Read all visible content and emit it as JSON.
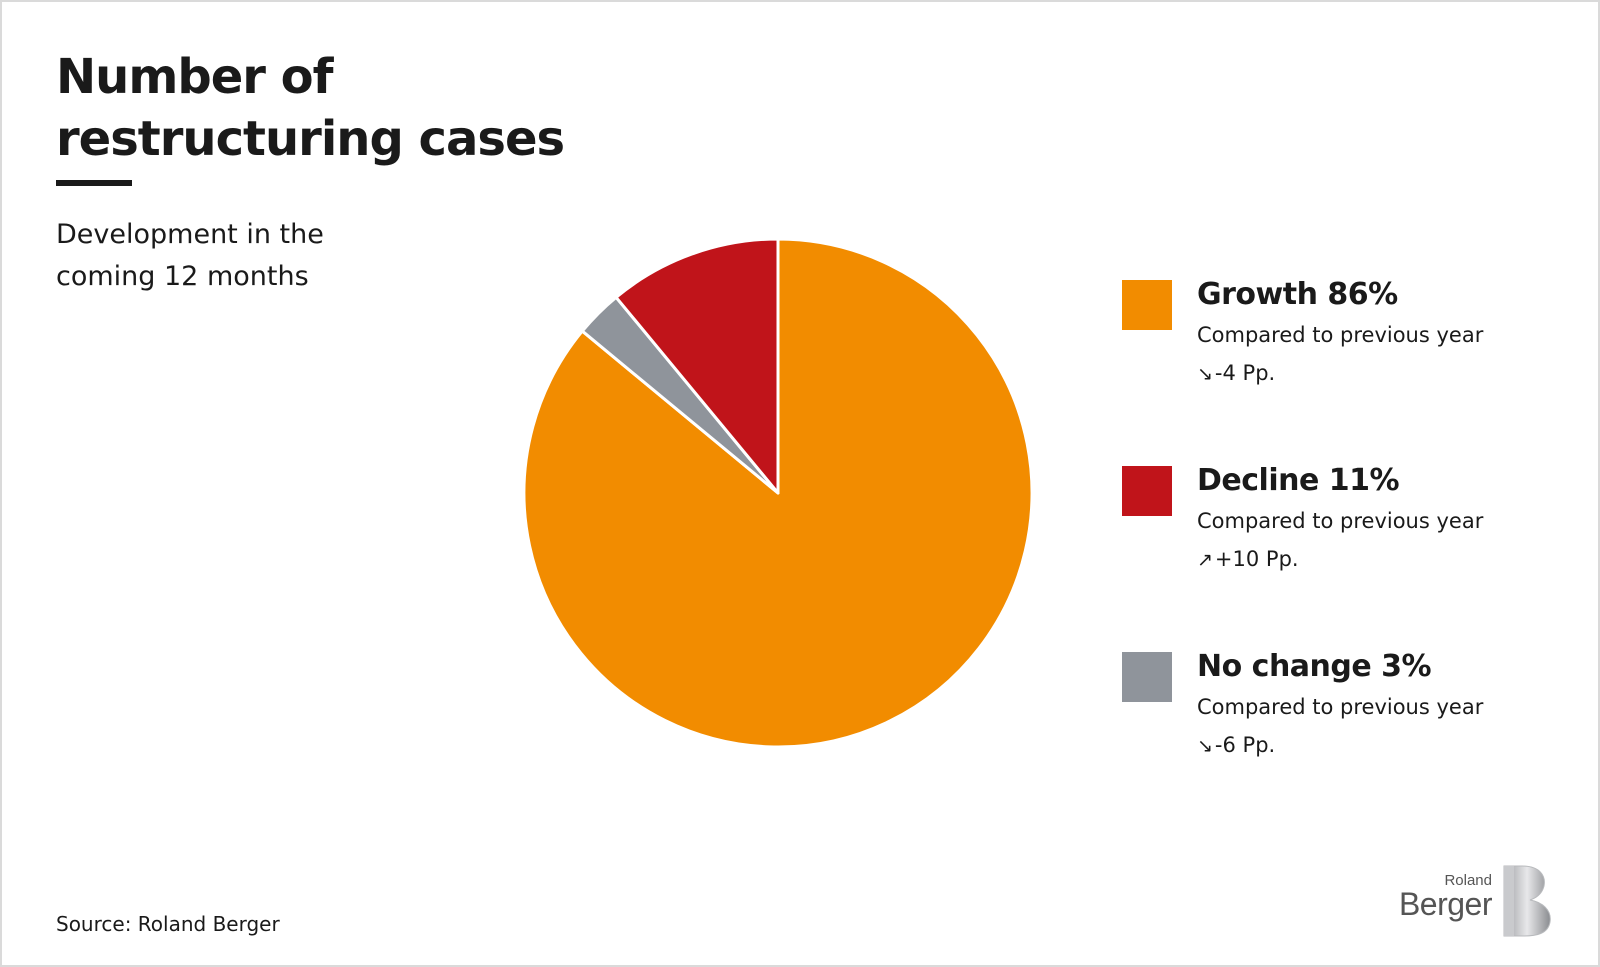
{
  "title": "Number of restructuring cases",
  "subtitle": "Development in the coming 12 months",
  "source": "Source: Roland Berger",
  "brand": {
    "line1": "Roland",
    "line2": "Berger"
  },
  "colors": {
    "growth": "#f28c00",
    "decline": "#c0141a",
    "no_change": "#8f949b"
  },
  "chart_data": {
    "type": "pie",
    "title": "Number of restructuring cases",
    "subtitle": "Development in the coming 12 months",
    "slices": [
      {
        "label": "Growth",
        "value": 86,
        "color": "#f28c00"
      },
      {
        "label": "No change",
        "value": 3,
        "color": "#8f949b"
      },
      {
        "label": "Decline",
        "value": 11,
        "color": "#c0141a"
      }
    ]
  },
  "legend": [
    {
      "title": "Growth 86%",
      "compare": "Compared to previous year",
      "arrow": "↘",
      "delta": "-4 Pp.",
      "color": "#f28c00"
    },
    {
      "title": "Decline 11%",
      "compare": "Compared to previous year",
      "arrow": "↗",
      "delta": "+10 Pp.",
      "color": "#c0141a"
    },
    {
      "title": "No change 3%",
      "compare": "Compared to previous year",
      "arrow": "↘",
      "delta": "-6 Pp.",
      "color": "#8f949b"
    }
  ]
}
